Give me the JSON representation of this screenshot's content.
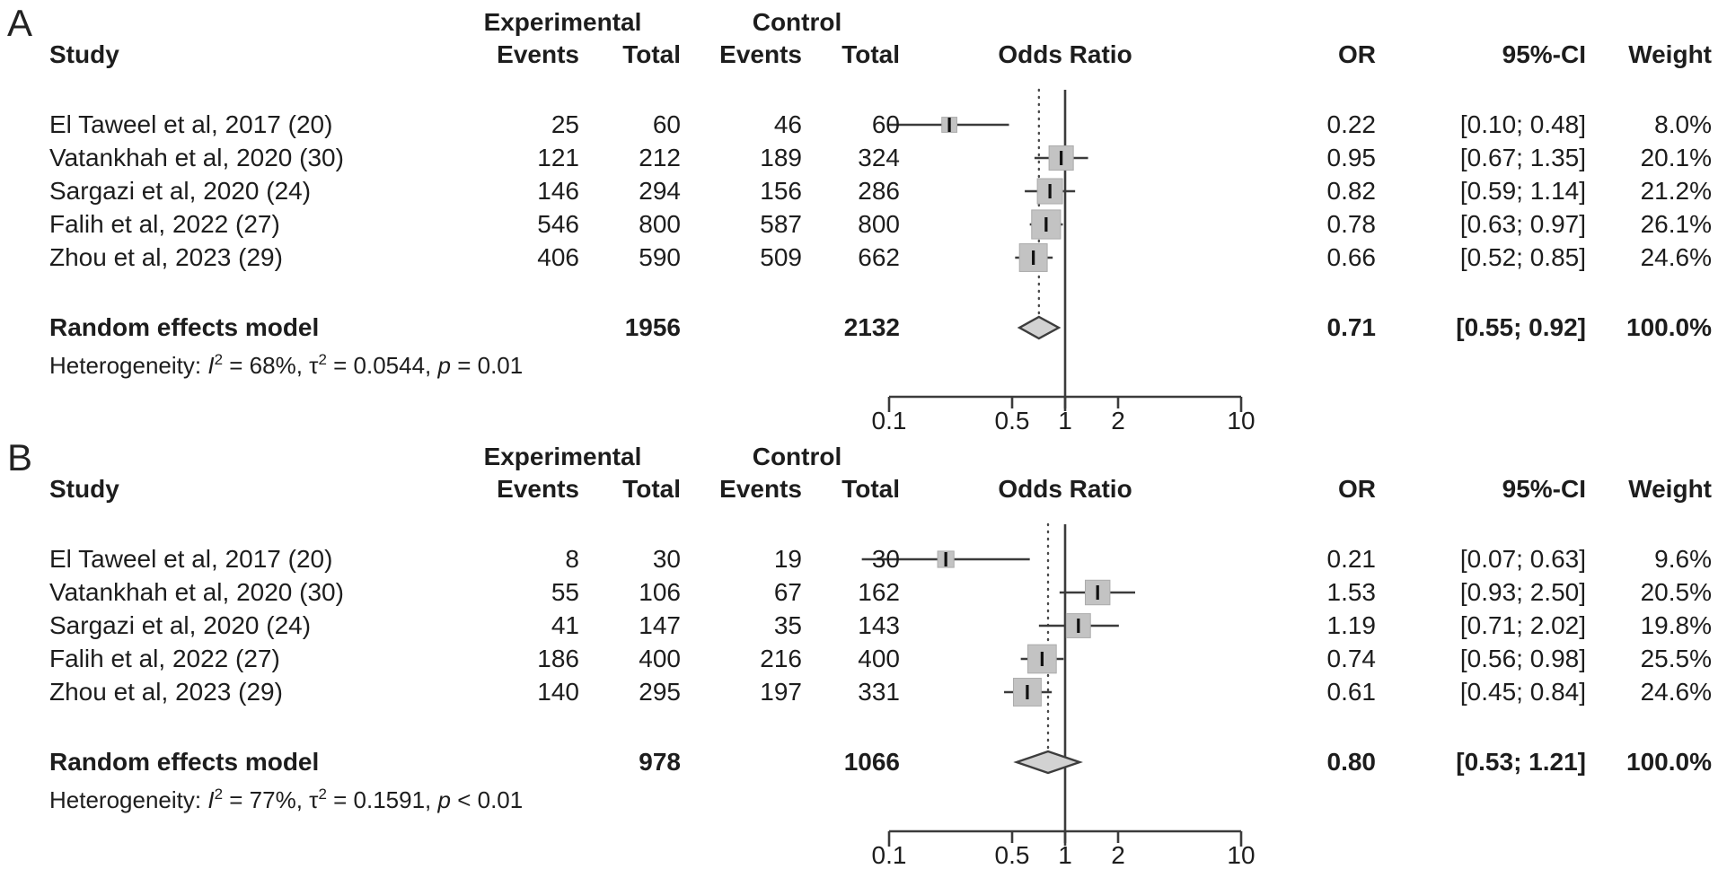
{
  "columns": {
    "study": "Study",
    "experimental": "Experimental",
    "control": "Control",
    "events": "Events",
    "total": "Total",
    "plot": "Odds Ratio",
    "or": "OR",
    "ci": "95%-CI",
    "weight": "Weight"
  },
  "colors": {
    "text": "#1d1d1d",
    "line": "#3b3b3b",
    "square_fill": "#c3c3c3",
    "square_stroke": "#ababab",
    "diamond_fill": "#d2d2d2",
    "diamond_stroke": "#3d3d3d"
  },
  "chart_data": [
    {
      "type": "forest",
      "label": "A",
      "effect_measure": "Odds Ratio",
      "x_scale": "log",
      "x_range": [
        0.1,
        10
      ],
      "axis_ticks": [
        "0.1",
        "0.5",
        "1",
        "2",
        "10"
      ],
      "studies": [
        {
          "name": "El Taweel et al, 2017 (20)",
          "exp_events": "25",
          "exp_total": "60",
          "ctrl_events": "46",
          "ctrl_total": "60",
          "or": 0.22,
          "ci_low": 0.1,
          "ci_high": 0.48,
          "or_text": "0.22",
          "ci_text": "[0.10; 0.48]",
          "weight": 8.0,
          "weight_text": "8.0%"
        },
        {
          "name": "Vatankhah et al, 2020 (30)",
          "exp_events": "121",
          "exp_total": "212",
          "ctrl_events": "189",
          "ctrl_total": "324",
          "or": 0.95,
          "ci_low": 0.67,
          "ci_high": 1.35,
          "or_text": "0.95",
          "ci_text": "[0.67; 1.35]",
          "weight": 20.1,
          "weight_text": "20.1%"
        },
        {
          "name": "Sargazi et al, 2020 (24)",
          "exp_events": "146",
          "exp_total": "294",
          "ctrl_events": "156",
          "ctrl_total": "286",
          "or": 0.82,
          "ci_low": 0.59,
          "ci_high": 1.14,
          "or_text": "0.82",
          "ci_text": "[0.59; 1.14]",
          "weight": 21.2,
          "weight_text": "21.2%"
        },
        {
          "name": "Falih et al, 2022 (27)",
          "exp_events": "546",
          "exp_total": "800",
          "ctrl_events": "587",
          "ctrl_total": "800",
          "or": 0.78,
          "ci_low": 0.63,
          "ci_high": 0.97,
          "or_text": "0.78",
          "ci_text": "[0.63; 0.97]",
          "weight": 26.1,
          "weight_text": "26.1%"
        },
        {
          "name": "Zhou et al, 2023 (29)",
          "exp_events": "406",
          "exp_total": "590",
          "ctrl_events": "509",
          "ctrl_total": "662",
          "or": 0.66,
          "ci_low": 0.52,
          "ci_high": 0.85,
          "or_text": "0.66",
          "ci_text": "[0.52; 0.85]",
          "weight": 24.6,
          "weight_text": "24.6%"
        }
      ],
      "summary": {
        "label": "Random effects model",
        "exp_total": "1956",
        "ctrl_total": "2132",
        "or": 0.71,
        "ci_low": 0.55,
        "ci_high": 0.92,
        "or_text": "0.71",
        "ci_text": "[0.55; 0.92]",
        "weight_text": "100.0%"
      },
      "heterogeneity": [
        {
          "t": "Heterogeneity: "
        },
        {
          "t": "I",
          "s": "it"
        },
        {
          "t": "2",
          "s": "sup"
        },
        {
          "t": " = 68%, "
        },
        {
          "t": "τ"
        },
        {
          "t": "2",
          "s": "sup"
        },
        {
          "t": " = 0.0544, "
        },
        {
          "t": "p",
          "s": "it"
        },
        {
          "t": " = 0.01"
        }
      ]
    },
    {
      "type": "forest",
      "label": "B",
      "effect_measure": "Odds Ratio",
      "x_scale": "log",
      "x_range": [
        0.1,
        10
      ],
      "axis_ticks": [
        "0.1",
        "0.5",
        "1",
        "2",
        "10"
      ],
      "studies": [
        {
          "name": "El Taweel et al, 2017 (20)",
          "exp_events": "8",
          "exp_total": "30",
          "ctrl_events": "19",
          "ctrl_total": "30",
          "or": 0.21,
          "ci_low": 0.07,
          "ci_high": 0.63,
          "or_text": "0.21",
          "ci_text": "[0.07; 0.63]",
          "weight": 9.6,
          "weight_text": "9.6%"
        },
        {
          "name": "Vatankhah et al, 2020 (30)",
          "exp_events": "55",
          "exp_total": "106",
          "ctrl_events": "67",
          "ctrl_total": "162",
          "or": 1.53,
          "ci_low": 0.93,
          "ci_high": 2.5,
          "or_text": "1.53",
          "ci_text": "[0.93; 2.50]",
          "weight": 20.5,
          "weight_text": "20.5%"
        },
        {
          "name": "Sargazi et al, 2020 (24)",
          "exp_events": "41",
          "exp_total": "147",
          "ctrl_events": "35",
          "ctrl_total": "143",
          "or": 1.19,
          "ci_low": 0.71,
          "ci_high": 2.02,
          "or_text": "1.19",
          "ci_text": "[0.71; 2.02]",
          "weight": 19.8,
          "weight_text": "19.8%"
        },
        {
          "name": "Falih et al, 2022 (27)",
          "exp_events": "186",
          "exp_total": "400",
          "ctrl_events": "216",
          "ctrl_total": "400",
          "or": 0.74,
          "ci_low": 0.56,
          "ci_high": 0.98,
          "or_text": "0.74",
          "ci_text": "[0.56; 0.98]",
          "weight": 25.5,
          "weight_text": "25.5%"
        },
        {
          "name": "Zhou et al, 2023 (29)",
          "exp_events": "140",
          "exp_total": "295",
          "ctrl_events": "197",
          "ctrl_total": "331",
          "or": 0.61,
          "ci_low": 0.45,
          "ci_high": 0.84,
          "or_text": "0.61",
          "ci_text": "[0.45; 0.84]",
          "weight": 24.6,
          "weight_text": "24.6%"
        }
      ],
      "summary": {
        "label": "Random effects model",
        "exp_total": "978",
        "ctrl_total": "1066",
        "or": 0.8,
        "ci_low": 0.53,
        "ci_high": 1.21,
        "or_text": "0.80",
        "ci_text": "[0.53; 1.21]",
        "weight_text": "100.0%"
      },
      "heterogeneity": [
        {
          "t": "Heterogeneity: "
        },
        {
          "t": "I",
          "s": "it"
        },
        {
          "t": "2",
          "s": "sup"
        },
        {
          "t": " = 77%, "
        },
        {
          "t": "τ"
        },
        {
          "t": "2",
          "s": "sup"
        },
        {
          "t": " = 0.1591, "
        },
        {
          "t": "p",
          "s": "it"
        },
        {
          "t": " < 0.01"
        }
      ]
    }
  ]
}
